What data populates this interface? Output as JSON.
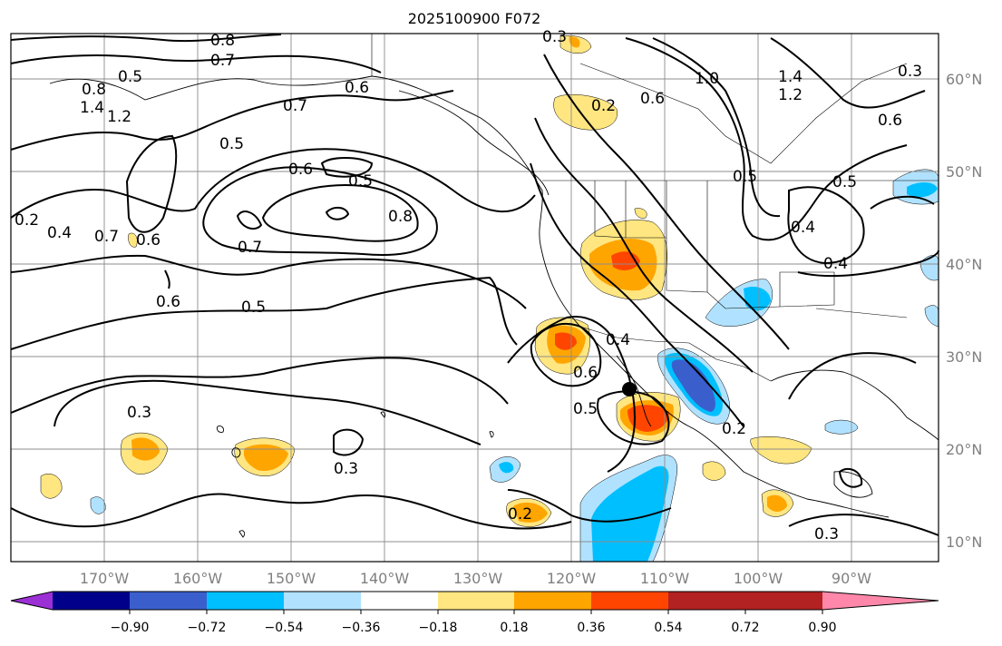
{
  "title": "2025100900 F072",
  "lon_ticks": [
    "170°W",
    "160°W",
    "150°W",
    "140°W",
    "130°W",
    "120°W",
    "110°W",
    "100°W",
    "90°W"
  ],
  "lat_ticks": [
    "60°N",
    "50°N",
    "40°N",
    "30°N",
    "20°N",
    "10°N"
  ],
  "colorbar": {
    "colors": [
      "#9b30d4",
      "#00008b",
      "#3a5fcd",
      "#00bfff",
      "#b0e2ff",
      "#ffffff",
      "#ffe680",
      "#ffa500",
      "#ff4500",
      "#b22222",
      "#ff88aa"
    ],
    "labels": [
      "−0.90",
      "−0.72",
      "−0.54",
      "−0.36",
      "−0.18",
      "0.18",
      "0.36",
      "0.54",
      "0.72",
      "0.90"
    ]
  },
  "contour_labels": [
    "0.8",
    "0.7",
    "0.5",
    "0.8",
    "1.4",
    "1.2",
    "0.7",
    "0.6",
    "0.5",
    "0.6",
    "0.5",
    "0.8",
    "0.7",
    "0.6",
    "0.7",
    "0.6",
    "0.5",
    "0.2",
    "0.4",
    "0.3",
    "0.3",
    "0.3",
    "0.6",
    "0.5",
    "0.4",
    "0.2",
    "0.2",
    "1.0",
    "1.4",
    "1.2",
    "0.6",
    "0.3",
    "0.6",
    "0.5",
    "0.4",
    "0.4",
    "0.2",
    "0.3",
    "0.5"
  ],
  "marker": "storm-center"
}
